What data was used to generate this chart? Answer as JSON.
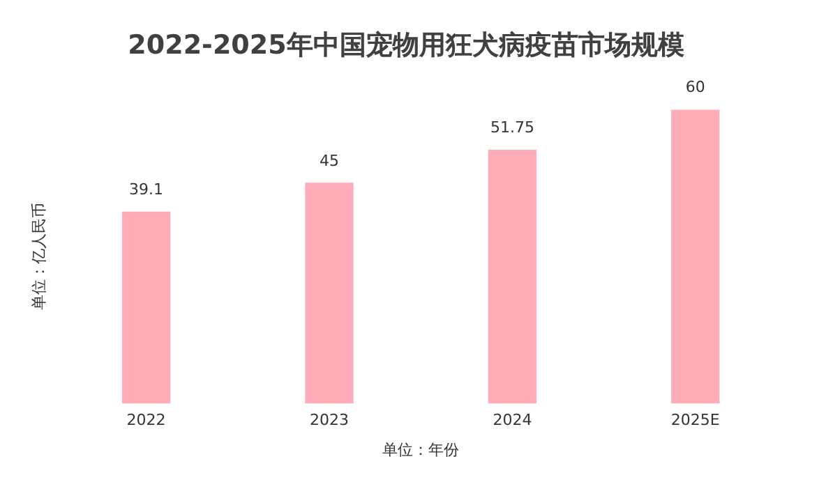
{
  "chart_data": {
    "type": "bar",
    "title": "2022-2025年中国宠物用狂犬病疫苗市场规模",
    "xlabel": "单位：年份",
    "ylabel": "单位：亿人民币",
    "categories": [
      "2022",
      "2023",
      "2024",
      "2025E"
    ],
    "values": [
      39.1,
      45,
      51.75,
      60
    ],
    "color": "#ffadb8",
    "data_labels": true,
    "grid": false,
    "legend": false,
    "tick_labels": "x"
  }
}
